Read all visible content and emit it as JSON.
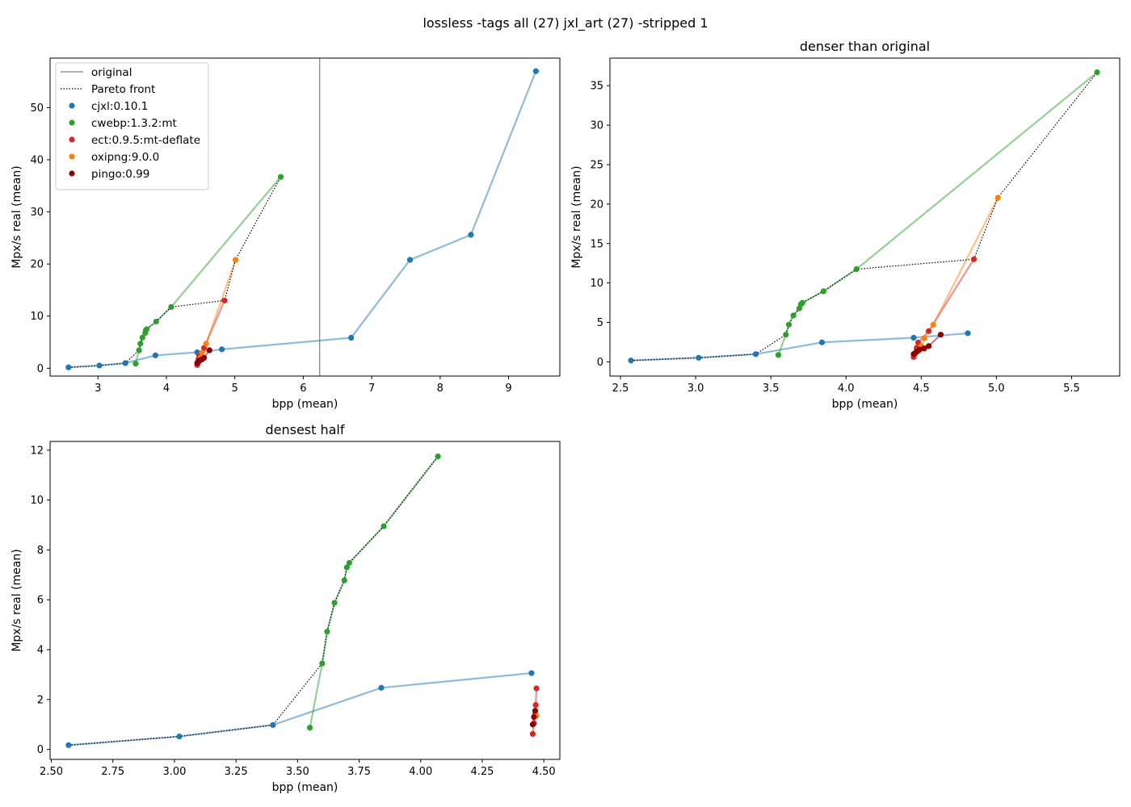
{
  "figure_title": "lossless -tags all (27) jxl_art (27) -stripped 1",
  "colors": {
    "cjxl:0.10.1": "#1f77b4",
    "cwebp:1.3.2:mt": "#2ca02c",
    "ect:0.9.5:mt-deflate": "#d62728",
    "oxipng:9.0.0": "#ff7f0e",
    "pingo:0.99": "#8b0000",
    "original": "#808080",
    "pareto": "#000000"
  },
  "chart_data": [
    {
      "type": "scatter",
      "title": "",
      "xlabel": "bpp (mean)",
      "ylabel": "Mpx/s real (mean)",
      "xlim": [
        2.3,
        9.75
      ],
      "ylim": [
        -1.5,
        59.5
      ],
      "xticks": [
        3,
        4,
        5,
        6,
        7,
        8,
        9
      ],
      "yticks": [
        0,
        10,
        20,
        30,
        40,
        50
      ],
      "grid": false,
      "original_bpp": 6.24,
      "legend": {
        "placement": "upper-left",
        "entries": [
          "original",
          "Pareto front",
          "cjxl:0.10.1",
          "cwebp:1.3.2:mt",
          "ect:0.9.5:mt-deflate",
          "oxipng:9.0.0",
          "pingo:0.99"
        ]
      },
      "series": [
        {
          "name": "cjxl:0.10.1",
          "points": [
            [
              2.57,
              0.17
            ],
            [
              3.02,
              0.52
            ],
            [
              3.4,
              0.98
            ],
            [
              3.84,
              2.47
            ],
            [
              4.45,
              3.06
            ],
            [
              4.81,
              3.63
            ],
            [
              6.7,
              5.85
            ],
            [
              7.56,
              20.8
            ],
            [
              8.45,
              25.6
            ],
            [
              9.4,
              57.0
            ]
          ]
        },
        {
          "name": "cwebp:1.3.2:mt",
          "points": [
            [
              3.55,
              0.87
            ],
            [
              3.6,
              3.45
            ],
            [
              3.62,
              4.72
            ],
            [
              3.65,
              5.88
            ],
            [
              3.69,
              6.78
            ],
            [
              3.7,
              7.3
            ],
            [
              3.71,
              7.48
            ],
            [
              3.85,
              8.95
            ],
            [
              4.07,
              11.75
            ],
            [
              5.67,
              36.7
            ]
          ]
        },
        {
          "name": "ect:0.9.5:mt-deflate",
          "points": [
            [
              4.45,
              0.62
            ],
            [
              4.46,
              1.05
            ],
            [
              4.47,
              1.42
            ],
            [
              4.47,
              1.78
            ],
            [
              4.48,
              2.45
            ],
            [
              4.55,
              3.9
            ],
            [
              4.85,
              13.0
            ]
          ]
        },
        {
          "name": "oxipng:9.0.0",
          "points": [
            [
              4.48,
              1.35
            ],
            [
              4.5,
              2.0
            ],
            [
              4.52,
              3.0
            ],
            [
              4.58,
              4.7
            ],
            [
              5.01,
              20.8
            ]
          ]
        },
        {
          "name": "pingo:0.99",
          "points": [
            [
              4.45,
              1.0
            ],
            [
              4.47,
              1.3
            ],
            [
              4.49,
              1.55
            ],
            [
              4.52,
              1.7
            ],
            [
              4.55,
              2.0
            ],
            [
              4.63,
              3.45
            ]
          ]
        }
      ],
      "pareto": [
        [
          2.57,
          0.17
        ],
        [
          3.02,
          0.52
        ],
        [
          3.4,
          0.98
        ],
        [
          3.6,
          3.45
        ],
        [
          3.62,
          4.72
        ],
        [
          3.65,
          5.88
        ],
        [
          3.69,
          6.78
        ],
        [
          3.7,
          7.3
        ],
        [
          3.71,
          7.48
        ],
        [
          3.85,
          8.95
        ],
        [
          4.07,
          11.75
        ],
        [
          4.85,
          13.0
        ],
        [
          5.01,
          20.8
        ],
        [
          5.67,
          36.7
        ]
      ]
    },
    {
      "type": "scatter",
      "title": "denser than original",
      "xlabel": "bpp (mean)",
      "ylabel": "Mpx/s real (mean)",
      "xlim": [
        2.43,
        5.82
      ],
      "ylim": [
        -1.8,
        38.5
      ],
      "xticks": [
        2.5,
        3.0,
        3.5,
        4.0,
        4.5,
        5.0,
        5.5
      ],
      "yticks": [
        0,
        5,
        10,
        15,
        20,
        25,
        30,
        35
      ],
      "grid": false,
      "series": [
        {
          "name": "cjxl:0.10.1",
          "points": [
            [
              2.57,
              0.17
            ],
            [
              3.02,
              0.52
            ],
            [
              3.4,
              0.98
            ],
            [
              3.84,
              2.47
            ],
            [
              4.45,
              3.06
            ],
            [
              4.81,
              3.63
            ]
          ]
        },
        {
          "name": "cwebp:1.3.2:mt",
          "points": [
            [
              3.55,
              0.87
            ],
            [
              3.6,
              3.45
            ],
            [
              3.62,
              4.72
            ],
            [
              3.65,
              5.88
            ],
            [
              3.69,
              6.78
            ],
            [
              3.7,
              7.3
            ],
            [
              3.71,
              7.48
            ],
            [
              3.85,
              8.95
            ],
            [
              4.07,
              11.75
            ],
            [
              5.67,
              36.7
            ]
          ]
        },
        {
          "name": "ect:0.9.5:mt-deflate",
          "points": [
            [
              4.45,
              0.62
            ],
            [
              4.46,
              1.05
            ],
            [
              4.47,
              1.42
            ],
            [
              4.47,
              1.78
            ],
            [
              4.48,
              2.45
            ],
            [
              4.55,
              3.9
            ],
            [
              4.85,
              13.0
            ]
          ]
        },
        {
          "name": "oxipng:9.0.0",
          "points": [
            [
              4.48,
              1.35
            ],
            [
              4.5,
              2.0
            ],
            [
              4.52,
              3.0
            ],
            [
              4.58,
              4.7
            ],
            [
              5.01,
              20.8
            ]
          ]
        },
        {
          "name": "pingo:0.99",
          "points": [
            [
              4.45,
              1.0
            ],
            [
              4.47,
              1.3
            ],
            [
              4.49,
              1.55
            ],
            [
              4.52,
              1.7
            ],
            [
              4.55,
              2.0
            ],
            [
              4.63,
              3.45
            ]
          ]
        }
      ],
      "pareto": [
        [
          2.57,
          0.17
        ],
        [
          3.02,
          0.52
        ],
        [
          3.4,
          0.98
        ],
        [
          3.6,
          3.45
        ],
        [
          3.62,
          4.72
        ],
        [
          3.65,
          5.88
        ],
        [
          3.69,
          6.78
        ],
        [
          3.7,
          7.3
        ],
        [
          3.71,
          7.48
        ],
        [
          3.85,
          8.95
        ],
        [
          4.07,
          11.75
        ],
        [
          4.85,
          13.0
        ],
        [
          5.01,
          20.8
        ],
        [
          5.67,
          36.7
        ]
      ]
    },
    {
      "type": "scatter",
      "title": "densest half",
      "xlabel": "bpp (mean)",
      "ylabel": "Mpx/s real (mean)",
      "xlim": [
        2.495,
        4.565
      ],
      "ylim": [
        -0.4,
        12.35
      ],
      "xticks": [
        2.5,
        2.75,
        3.0,
        3.25,
        3.5,
        3.75,
        4.0,
        4.25,
        4.5
      ],
      "yticks": [
        0,
        2,
        4,
        6,
        8,
        10,
        12
      ],
      "grid": false,
      "series": [
        {
          "name": "cjxl:0.10.1",
          "points": [
            [
              2.57,
              0.17
            ],
            [
              3.02,
              0.52
            ],
            [
              3.4,
              0.98
            ],
            [
              3.84,
              2.47
            ],
            [
              4.45,
              3.06
            ]
          ]
        },
        {
          "name": "cwebp:1.3.2:mt",
          "points": [
            [
              3.55,
              0.87
            ],
            [
              3.6,
              3.45
            ],
            [
              3.62,
              4.72
            ],
            [
              3.65,
              5.88
            ],
            [
              3.69,
              6.78
            ],
            [
              3.7,
              7.3
            ],
            [
              3.71,
              7.48
            ],
            [
              3.85,
              8.95
            ],
            [
              4.07,
              11.75
            ]
          ]
        },
        {
          "name": "ect:0.9.5:mt-deflate",
          "points": [
            [
              4.455,
              0.62
            ],
            [
              4.46,
              1.05
            ],
            [
              4.465,
              1.42
            ],
            [
              4.467,
              1.78
            ],
            [
              4.47,
              2.45
            ]
          ]
        },
        {
          "name": "oxipng:9.0.0",
          "points": [
            [
              4.47,
              1.35
            ]
          ]
        },
        {
          "name": "pingo:0.99",
          "points": [
            [
              4.455,
              1.0
            ],
            [
              4.46,
              1.3
            ],
            [
              4.465,
              1.55
            ]
          ]
        }
      ],
      "pareto": [
        [
          2.57,
          0.17
        ],
        [
          3.02,
          0.52
        ],
        [
          3.4,
          0.98
        ],
        [
          3.6,
          3.45
        ],
        [
          3.62,
          4.72
        ],
        [
          3.65,
          5.88
        ],
        [
          3.69,
          6.78
        ],
        [
          3.7,
          7.3
        ],
        [
          3.71,
          7.48
        ],
        [
          3.85,
          8.95
        ],
        [
          4.07,
          11.75
        ]
      ]
    }
  ]
}
